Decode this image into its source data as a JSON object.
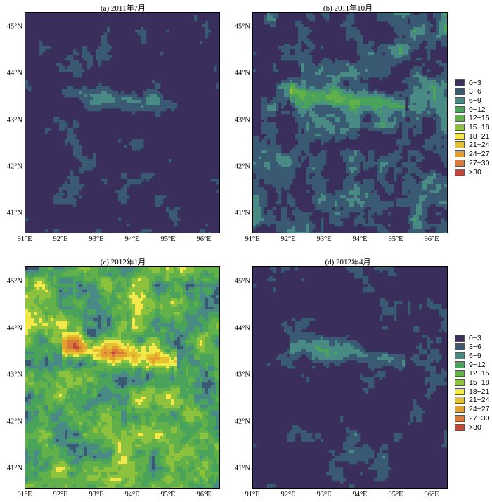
{
  "legend_classes": [
    {
      "label": "0~3",
      "color": "#3b2f5e"
    },
    {
      "label": "3~6",
      "color": "#3a5a73"
    },
    {
      "label": "6~9",
      "color": "#4a8a84"
    },
    {
      "label": "9~12",
      "color": "#4aa35a"
    },
    {
      "label": "12~15",
      "color": "#62b04a"
    },
    {
      "label": "15~18",
      "color": "#8cc23e"
    },
    {
      "label": "18~21",
      "color": "#f2e84a"
    },
    {
      "label": "21~24",
      "color": "#e6c233"
    },
    {
      "label": "24~27",
      "color": "#e3a02e"
    },
    {
      "label": "27~30",
      "color": "#d77a3a"
    },
    {
      "label": ">30",
      "color": "#c0493c"
    }
  ],
  "panels": [
    {
      "title": "(a) 2011年7月",
      "intensity": 0.15
    },
    {
      "title": "(b) 2011年10月",
      "intensity": 0.35
    },
    {
      "title": "(c) 2012年1月",
      "intensity": 0.85
    },
    {
      "title": "(d) 2012年4月",
      "intensity": 0.2
    }
  ],
  "lat_labels": [
    "45°N",
    "44°N",
    "43°N",
    "42°N",
    "41°N"
  ],
  "lon_labels": [
    "91°E",
    "92°E",
    "93°E",
    "94°E",
    "95°E",
    "96°E"
  ]
}
